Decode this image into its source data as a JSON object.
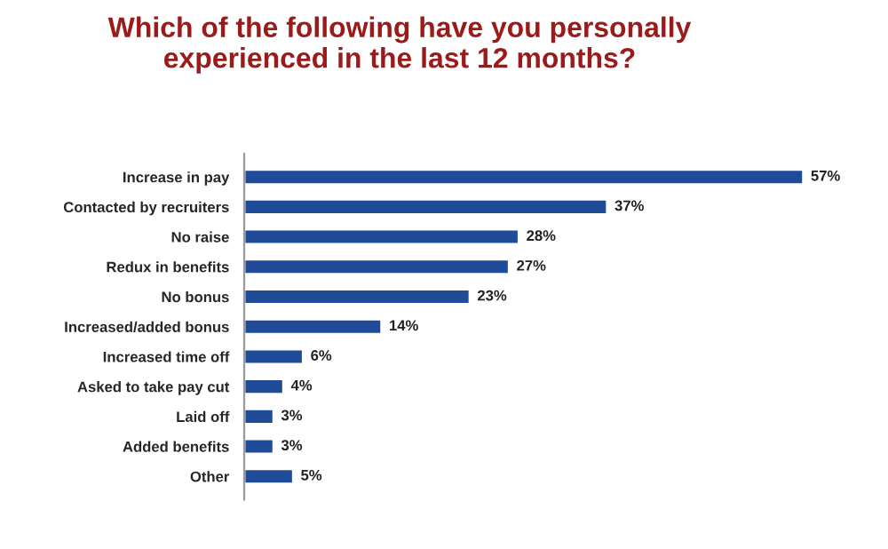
{
  "chart_data": {
    "type": "bar",
    "orientation": "horizontal",
    "title": "Which of the following have you personally\nexperienced in the last 12 months?",
    "categories": [
      "Increase in pay",
      "Contacted by recruiters",
      "No raise",
      "Redux in benefits",
      "No bonus",
      "Increased/added bonus",
      "Increased time off",
      "Asked to take pay cut",
      "Laid off",
      "Added benefits",
      "Other"
    ],
    "values": [
      57,
      37,
      28,
      27,
      23,
      14,
      6,
      4,
      3,
      3,
      5
    ],
    "value_labels": [
      "57%",
      "37%",
      "28%",
      "27%",
      "23%",
      "14%",
      "6%",
      "4%",
      "3%",
      "3%",
      "5%"
    ],
    "color": "#1f4b99",
    "grid": false,
    "legend": false
  }
}
